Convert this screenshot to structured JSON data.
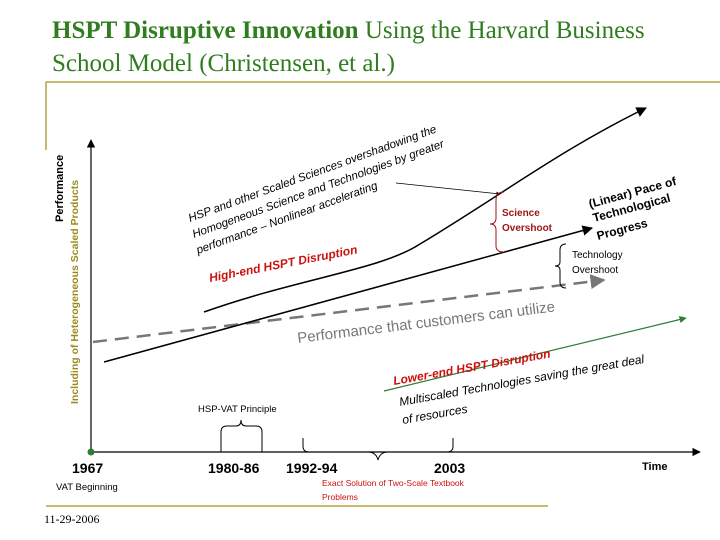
{
  "title": {
    "bold": "HSPT Disruptive Innovation",
    "rest": " Using the Harvard Business School  Model  (Christensen, et al.)"
  },
  "footer": {
    "date": "11-29-2006"
  },
  "diagram": {
    "y_axis_label_1": "Performance",
    "y_axis_label_2": "Including of Heterogeneous Scaled Products",
    "x_axis_label": "Time",
    "x_ticks": {
      "t1967": "1967",
      "t1980": "1980-86",
      "t1992": "1992-94",
      "t2003": "2003"
    },
    "vat_beginning": "VAT Beginning",
    "hsp_vat_principle": "HSP-VAT Principle",
    "exact_solution_1": "Exact Solution of Two-Scale Textbook",
    "exact_solution_2": "Problems",
    "hsp_annotation_1": "HSP and other Scaled Sciences overshadowing the",
    "hsp_annotation_2": "Homogeneous Science and Technologies by greater",
    "hsp_annotation_3": "performance – Nonlinear accelerating",
    "high_end": "High-end HSPT Disruption",
    "science_overshoot_1": "Science",
    "science_overshoot_2": "Overshoot",
    "linear_pace_1": "(Linear) Pace of",
    "linear_pace_2": "Technological",
    "linear_pace_3": "Progress",
    "tech_overshoot_1": "Technology",
    "tech_overshoot_2": "Overshoot",
    "customers": "Performance that customers can utilize",
    "lower_end": "Lower-end HSPT Disruption",
    "multiscaled_1": "Multiscaled Technologies saving the great deal",
    "multiscaled_2": "of resources"
  },
  "colors": {
    "title_green": "#2f7d1e",
    "rule_olive": "#b5a33a",
    "axis_label_olive": "#9a8a1a",
    "red": "#cc1111",
    "dark_red": "#9a1515",
    "curve_green": "#2e7d32",
    "dashed_gray": "#777777"
  }
}
